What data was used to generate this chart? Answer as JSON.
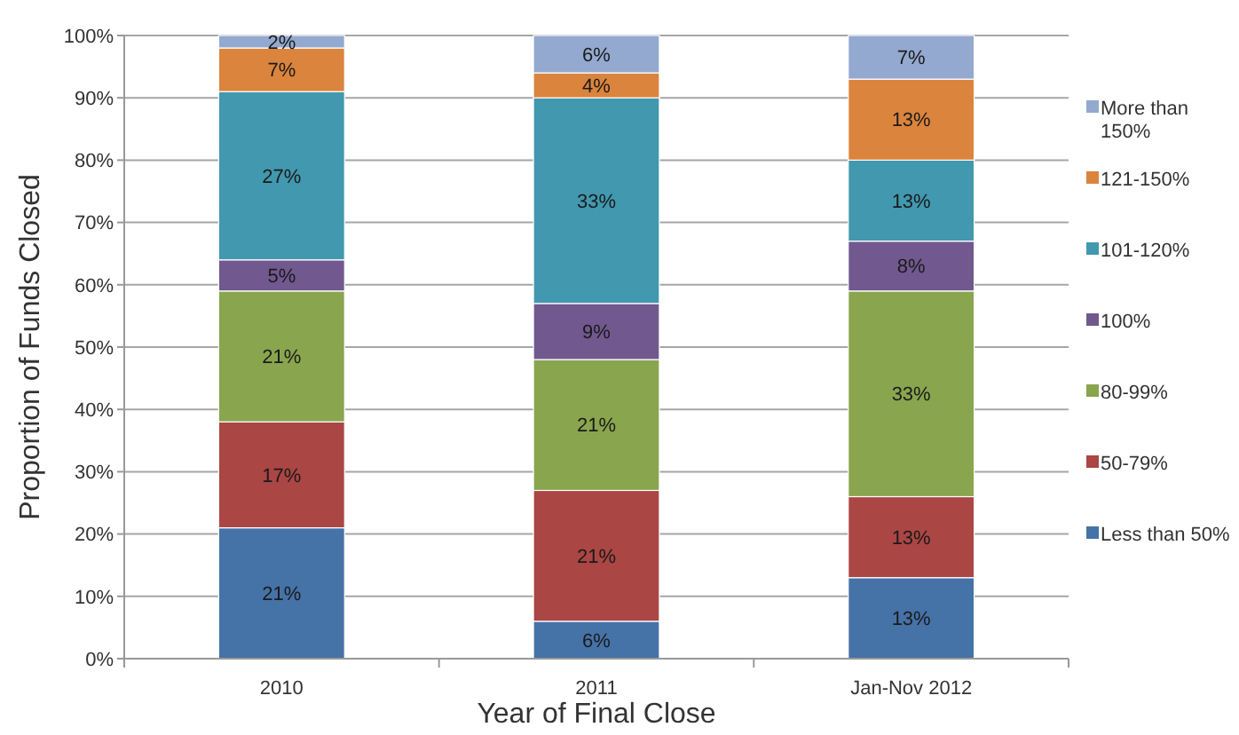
{
  "chart_data": {
    "type": "bar",
    "stacked": true,
    "xlabel": "Year of Final Close",
    "ylabel": "Proportion of Funds Closed",
    "categories": [
      "2010",
      "2011",
      "Jan-Nov 2012"
    ],
    "series": [
      {
        "name": "Less than 50%",
        "color": "#4572a7",
        "values": [
          21,
          6,
          13
        ],
        "value_labels": [
          "21%",
          "6%",
          "13%"
        ]
      },
      {
        "name": "50-79%",
        "color": "#aa4643",
        "values": [
          17,
          21,
          13
        ],
        "value_labels": [
          "17%",
          "21%",
          "13%"
        ]
      },
      {
        "name": "80-99%",
        "color": "#89a54e",
        "values": [
          21,
          21,
          33
        ],
        "value_labels": [
          "21%",
          "21%",
          "33%"
        ]
      },
      {
        "name": "100%",
        "color": "#71588f",
        "values": [
          5,
          9,
          8
        ],
        "value_labels": [
          "5%",
          "9%",
          "8%"
        ]
      },
      {
        "name": "101-120%",
        "color": "#4198af",
        "values": [
          27,
          33,
          13
        ],
        "value_labels": [
          "27%",
          "33%",
          "13%"
        ]
      },
      {
        "name": "121-150%",
        "color": "#db843d",
        "values": [
          7,
          4,
          13
        ],
        "value_labels": [
          "7%",
          "4%",
          "13%"
        ]
      },
      {
        "name": "More than 150%",
        "color": "#93a9cf",
        "values": [
          2,
          6,
          7
        ],
        "value_labels": [
          "2%",
          "6%",
          "7%"
        ]
      }
    ],
    "ylim": [
      0,
      100
    ],
    "yticks": [
      {
        "value": 0,
        "label": "0%"
      },
      {
        "value": 10,
        "label": "10%"
      },
      {
        "value": 20,
        "label": "20%"
      },
      {
        "value": 30,
        "label": "30%"
      },
      {
        "value": 40,
        "label": "40%"
      },
      {
        "value": 50,
        "label": "50%"
      },
      {
        "value": 60,
        "label": "60%"
      },
      {
        "value": 70,
        "label": "70%"
      },
      {
        "value": 80,
        "label": "80%"
      },
      {
        "value": 90,
        "label": "90%"
      },
      {
        "value": 100,
        "label": "100%"
      }
    ],
    "grid": "y",
    "legend": "right"
  }
}
